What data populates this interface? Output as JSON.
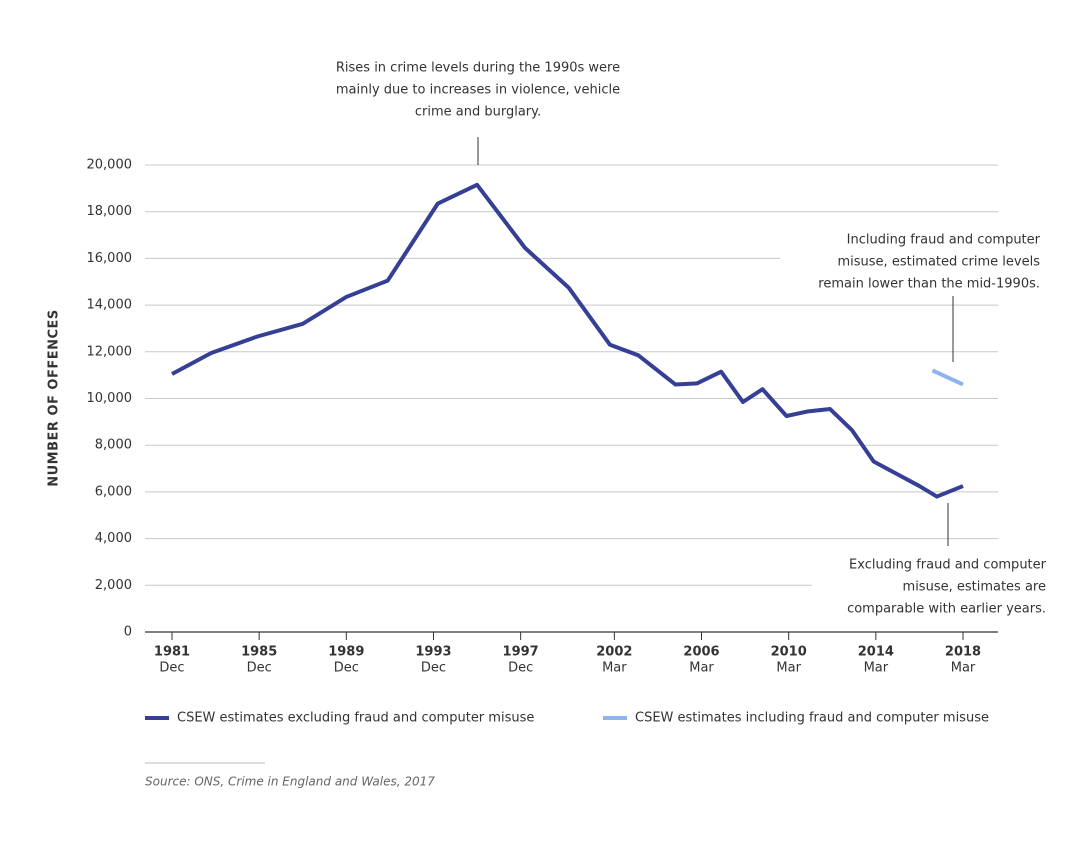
{
  "chart_data": {
    "type": "line",
    "ylabel": "NUMBER OF OFFENCES",
    "ylim": [
      0,
      20000
    ],
    "yticks": [
      0,
      {
        "value": 2000,
        "label": "2,000"
      },
      {
        "value": 4000,
        "label": "4,000"
      },
      {
        "value": 6000,
        "label": "6,000"
      },
      {
        "value": 8000,
        "label": "8,000"
      },
      {
        "value": 10000,
        "label": "10,000"
      },
      {
        "value": 12000,
        "label": "12,000"
      },
      {
        "value": 14000,
        "label": "14,000"
      },
      {
        "value": 16000,
        "label": "16,000"
      },
      {
        "value": 18000,
        "label": "18,000"
      },
      {
        "value": 20000,
        "label": "20,000"
      }
    ],
    "xlim": [
      1980.7,
      2019.2
    ],
    "xticks": [
      {
        "value": 1981.9,
        "label": "1981"
      },
      {
        "value": 1985.9,
        "label": "1985"
      },
      {
        "value": 1989.9,
        "label": "1989"
      },
      {
        "value": 1993.9,
        "label": "1993"
      },
      {
        "value": 1997.9,
        "label": "1997"
      },
      {
        "value": 2002.2,
        "label": "2002"
      },
      {
        "value": 2006.2,
        "label": "2006"
      },
      {
        "value": 2010.2,
        "label": "2010"
      },
      {
        "value": 2014.2,
        "label": "2014"
      },
      {
        "value": 2018.2,
        "label": "2018"
      }
    ],
    "xtick_months": [
      "Dec",
      "Dec",
      "Dec",
      "Dec",
      "Dec",
      "Mar",
      "Mar",
      "Mar",
      "Mar",
      "Mar"
    ],
    "grid": true,
    "series": [
      {
        "name": "CSEW estimates excluding fraud and computer misuse",
        "color": "#343f95",
        "x": [
          1981.9,
          1983.7,
          1985.8,
          1987.9,
          1989.9,
          1991.8,
          1994.1,
          1995.9,
          1998.1,
          2000.1,
          2002.0,
          2003.3,
          2005.0,
          2006.0,
          2007.1,
          2008.1,
          2009.0,
          2010.1,
          2011.1,
          2012.1,
          2013.1,
          2014.1,
          2015.2,
          2016.2,
          2017.0,
          2018.2
        ],
        "values": [
          11050,
          11950,
          12650,
          13200,
          14350,
          15050,
          18350,
          19150,
          16450,
          14750,
          12300,
          11850,
          10600,
          10650,
          11150,
          9850,
          10400,
          9250,
          9450,
          9550,
          8650,
          7300,
          6750,
          6250,
          5800,
          6250
        ]
      },
      {
        "name": "CSEW estimates including fraud and computer misuse",
        "color": "#8db4f0",
        "x": [
          2016.8,
          2018.2
        ],
        "values": [
          11200,
          10600
        ]
      }
    ],
    "annotations": [
      {
        "lines": [
          "Rises in crime levels during the 1990s were",
          "mainly due to increases in violence, vehicle",
          "crime and burglary."
        ]
      },
      {
        "lines": [
          "Including fraud and computer",
          "misuse, estimated crime levels",
          "remain lower than the mid-1990s."
        ]
      },
      {
        "lines": [
          "Excluding fraud and computer",
          "misuse, estimates are",
          "comparable with earlier years."
        ]
      }
    ],
    "source": "Source: ONS, Crime in England and Wales, 2017"
  }
}
